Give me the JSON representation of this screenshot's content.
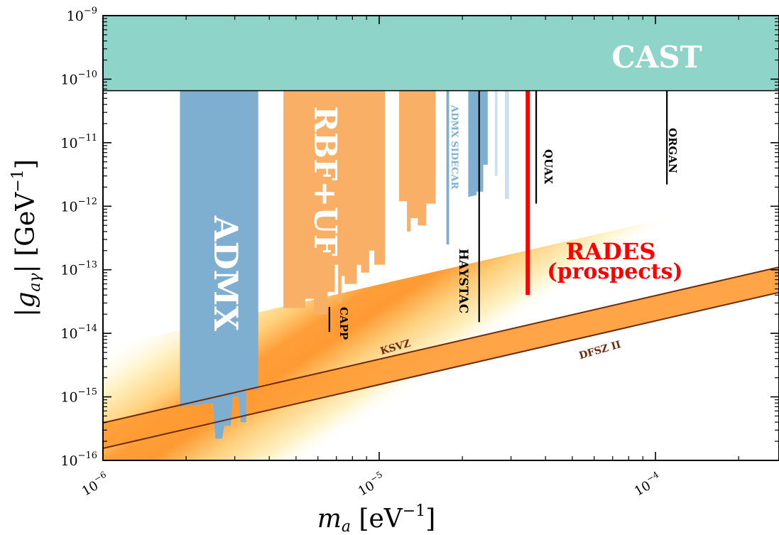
{
  "chart_data": {
    "type": "area",
    "title": "",
    "xlabel": "m_a [eV^-1]",
    "ylabel": "|g_aγ| [GeV^-1]",
    "xscale": "log",
    "yscale": "log",
    "xlim": [
      1e-06,
      0.00028
    ],
    "ylim": [
      1e-16,
      1e-09
    ],
    "x_ticks": [
      {
        "value": 1e-06,
        "base": "10",
        "exp": "−6"
      },
      {
        "value": 1e-05,
        "base": "10",
        "exp": "−5"
      },
      {
        "value": 0.0001,
        "base": "10",
        "exp": "−4"
      }
    ],
    "y_ticks": [
      {
        "value": 1e-16,
        "base": "10",
        "exp": "−16"
      },
      {
        "value": 1e-15,
        "base": "10",
        "exp": "−15"
      },
      {
        "value": 1e-14,
        "base": "10",
        "exp": "−14"
      },
      {
        "value": 1e-13,
        "base": "10",
        "exp": "−13"
      },
      {
        "value": 1e-12,
        "base": "10",
        "exp": "−12"
      },
      {
        "value": 1e-11,
        "base": "10",
        "exp": "−11"
      },
      {
        "value": 1e-10,
        "base": "10",
        "exp": "−10"
      },
      {
        "value": 1e-09,
        "base": "10",
        "exp": "−9"
      }
    ],
    "colors": {
      "cast": "#8fd4c8",
      "admx": "#7fafd0",
      "rbf_uf": "#f9b066",
      "sidecar": "#7fafd0",
      "rades": "#ff0000",
      "band_core": "#ff9930",
      "band_mid": "#ffc96a",
      "model_line": "#6e2a0a",
      "experiment_line": "#000000"
    },
    "regions": [
      {
        "name": "CAST",
        "label": "CAST",
        "x_range": [
          1e-06,
          0.00028
        ],
        "y_range": [
          6.6e-11,
          1e-09
        ],
        "label_color": "#ffffff"
      },
      {
        "name": "ADMX",
        "label": "ADMX",
        "x_range": [
          1.9e-06,
          3.65e-06
        ],
        "y_bottom": 7e-16,
        "y_top": 6.6e-11,
        "label_color": "#ffffff"
      },
      {
        "name": "RBF+UF",
        "label": "RBF+UF",
        "label_color": "#ffffff"
      },
      {
        "name": "ADMX SIDECAR",
        "label": "ADMX SIDECAR",
        "label_color": "#7fafd0"
      }
    ],
    "lines": [
      {
        "name": "CAPP",
        "label": "CAPP",
        "x": 6.6e-06,
        "y_range": [
          1.05e-14,
          2.6e-14
        ],
        "color": "#000000"
      },
      {
        "name": "HAYSTAC",
        "label": "HAYSTAC",
        "x": 2.3e-05,
        "y_range": [
          1.5e-14,
          6.6e-11
        ],
        "color": "#000000"
      },
      {
        "name": "QUAX",
        "label": "QUAX",
        "x": 3.7e-05,
        "y_range": [
          1.1e-12,
          6.6e-11
        ],
        "color": "#000000"
      },
      {
        "name": "ORGAN",
        "label": "ORGAN",
        "x": 0.00011,
        "y_range": [
          2.2e-12,
          6.6e-11
        ],
        "color": "#000000"
      },
      {
        "name": "RADES",
        "label_line1": "RADES",
        "label_line2": "(prospects)",
        "x": 3.45e-05,
        "y_range": [
          4e-14,
          6.6e-11
        ],
        "color": "#ff0000"
      }
    ],
    "models": [
      {
        "name": "KSVZ",
        "label": "KSVZ",
        "points": [
          [
            1e-06,
            3.9e-16
          ],
          [
            0.00028,
            1.1e-13
          ]
        ]
      },
      {
        "name": "DFSZ II",
        "label": "DFSZ II",
        "points": [
          [
            1e-06,
            1.55e-16
          ],
          [
            0.00028,
            4.4e-14
          ]
        ]
      }
    ]
  }
}
